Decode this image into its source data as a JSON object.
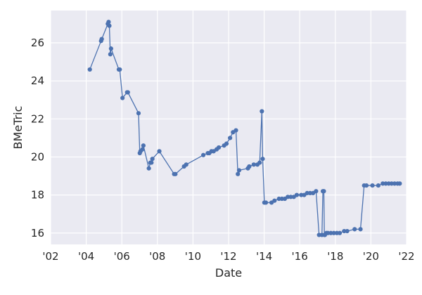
{
  "chart_data": {
    "type": "line",
    "title": "",
    "xlabel": "Date",
    "ylabel": "BMeTric",
    "xlim": [
      "2002-01-01",
      "2022-01-01"
    ],
    "ylim": [
      15.4,
      27.7
    ],
    "x_ticks": [
      "2002-01-01",
      "2004-01-01",
      "2006-01-01",
      "2008-01-01",
      "2010-01-01",
      "2012-01-01",
      "2014-01-01",
      "2016-01-01",
      "2018-01-01",
      "2020-01-01",
      "2022-01-01"
    ],
    "x_tick_labels": [
      "'02",
      "'04",
      "'06",
      "'08",
      "'10",
      "'12",
      "'14",
      "'16",
      "'18",
      "'20",
      "'22"
    ],
    "y_ticks": [
      16,
      18,
      20,
      22,
      24,
      26
    ],
    "y_tick_labels": [
      "16",
      "18",
      "20",
      "22",
      "24",
      "26"
    ],
    "grid": true,
    "colors": {
      "line": "#4c72b0",
      "plot_bg": "#eaeaf2",
      "grid": "#ffffff"
    },
    "series": [
      {
        "x": [
          "2004-03-15",
          "2004-11-01",
          "2004-11-15",
          "2005-03-20",
          "2005-04-05",
          "2005-04-20",
          "2005-05-10",
          "2005-05-25",
          "2005-11-01",
          "2005-11-20",
          "2006-01-15",
          "2006-04-20",
          "2006-05-05",
          "2006-12-10",
          "2007-01-05",
          "2007-01-20",
          "2007-03-01",
          "2007-03-20",
          "2007-07-10",
          "2007-08-10",
          "2007-09-01",
          "2007-09-20",
          "2008-02-10",
          "2008-12-10",
          "2009-01-05",
          "2009-07-01",
          "2009-08-15",
          "2010-08-01",
          "2010-11-01",
          "2010-12-01",
          "2011-01-15",
          "2011-03-01",
          "2011-05-01",
          "2011-06-15",
          "2011-10-01",
          "2011-11-20",
          "2012-02-01",
          "2012-04-01",
          "2012-06-01",
          "2012-07-10",
          "2012-08-05",
          "2013-02-01",
          "2013-03-01",
          "2013-06-01",
          "2013-08-15",
          "2013-10-01",
          "2013-11-15",
          "2013-12-01",
          "2014-01-05",
          "2014-02-05",
          "2014-06-01",
          "2014-08-01",
          "2014-11-01",
          "2015-01-01",
          "2015-03-01",
          "2015-05-01",
          "2015-07-01",
          "2015-09-01",
          "2015-11-01",
          "2016-02-01",
          "2016-04-01",
          "2016-06-01",
          "2016-08-01",
          "2016-10-01",
          "2016-12-01",
          "2017-02-01",
          "2017-04-01",
          "2017-04-20",
          "2017-05-10",
          "2017-05-20",
          "2017-06-01",
          "2017-07-01",
          "2017-08-01",
          "2017-10-01",
          "2017-12-01",
          "2018-02-01",
          "2018-04-01",
          "2018-07-01",
          "2018-09-01",
          "2019-02-01",
          "2019-06-01",
          "2019-08-15",
          "2019-10-01",
          "2020-02-01",
          "2020-06-01",
          "2020-09-01",
          "2020-11-01",
          "2021-01-01",
          "2021-03-01",
          "2021-05-01",
          "2021-07-01",
          "2021-08-15"
        ],
        "y": [
          24.6,
          26.1,
          26.2,
          27.0,
          27.1,
          26.9,
          25.4,
          25.7,
          24.6,
          24.6,
          23.1,
          23.4,
          23.4,
          22.3,
          20.2,
          20.3,
          20.4,
          20.6,
          19.4,
          19.7,
          19.7,
          19.9,
          20.3,
          19.1,
          19.1,
          19.5,
          19.6,
          20.1,
          20.2,
          20.2,
          20.3,
          20.3,
          20.4,
          20.5,
          20.6,
          20.7,
          21.0,
          21.3,
          21.4,
          19.1,
          19.3,
          19.4,
          19.5,
          19.6,
          19.6,
          19.7,
          22.4,
          19.9,
          17.6,
          17.6,
          17.6,
          17.7,
          17.8,
          17.8,
          17.8,
          17.9,
          17.9,
          17.9,
          18.0,
          18.0,
          18.0,
          18.1,
          18.1,
          18.1,
          18.2,
          15.9,
          15.9,
          18.2,
          18.2,
          15.9,
          15.9,
          16.0,
          16.0,
          16.0,
          16.0,
          16.0,
          16.0,
          16.1,
          16.1,
          16.2,
          16.2,
          18.5,
          18.5,
          18.5,
          18.5,
          18.6,
          18.6,
          18.6,
          18.6,
          18.6,
          18.6,
          18.6
        ]
      }
    ]
  }
}
